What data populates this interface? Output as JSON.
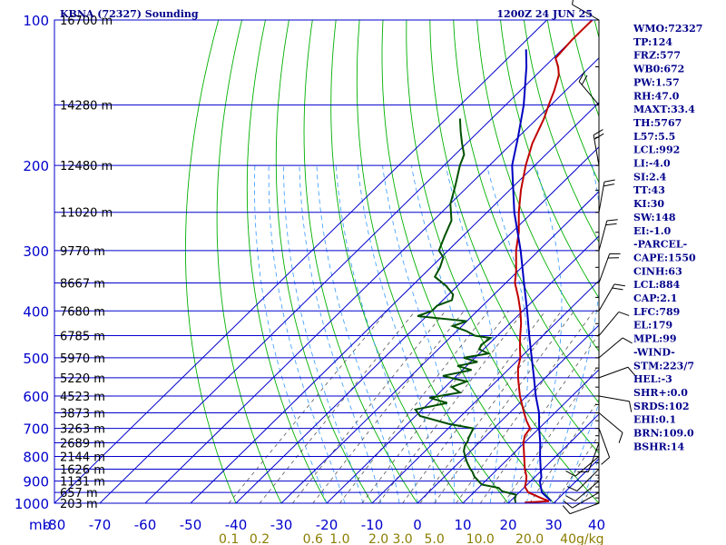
{
  "header": {
    "station": "KBNA (72327) Sounding",
    "time": "1200Z 24 JUN 25"
  },
  "colors": {
    "isobar": "#0000cd",
    "isotherm": "#0000cd",
    "dry_adiabat": "#00b000",
    "moist_adiabat": "#3399ff",
    "mixing_ratio": "#555555",
    "temperature": "#c00000",
    "dewpoint": "#005000",
    "parcel": "#0000c0"
  },
  "chart_data": {
    "type": "line",
    "title": "KBNA (72327) Sounding",
    "subtitle": "1200Z 24 JUN 25",
    "x_unit": "°C",
    "y_unit": "mb",
    "y_scale": "log",
    "pressure_range": [
      1000,
      100
    ],
    "temperature_range": [
      -80,
      40
    ],
    "pressure_levels": [
      {
        "p": 100,
        "label": "100"
      },
      {
        "p": 150,
        "label": ""
      },
      {
        "p": 200,
        "label": "200"
      },
      {
        "p": 250,
        "label": ""
      },
      {
        "p": 300,
        "label": "300"
      },
      {
        "p": 350,
        "label": ""
      },
      {
        "p": 400,
        "label": "400"
      },
      {
        "p": 450,
        "label": ""
      },
      {
        "p": 500,
        "label": "500"
      },
      {
        "p": 550,
        "label": ""
      },
      {
        "p": 600,
        "label": "600"
      },
      {
        "p": 650,
        "label": ""
      },
      {
        "p": 700,
        "label": "700"
      },
      {
        "p": 750,
        "label": ""
      },
      {
        "p": 800,
        "label": "800"
      },
      {
        "p": 850,
        "label": ""
      },
      {
        "p": 900,
        "label": "900"
      },
      {
        "p": 950,
        "label": ""
      },
      {
        "p": 1000,
        "label": "1000"
      }
    ],
    "y_axis_unit_label": "mb",
    "temperature_ticks": [
      {
        "t": -80,
        "label": "-80"
      },
      {
        "t": -70,
        "label": "-70"
      },
      {
        "t": -60,
        "label": "-60"
      },
      {
        "t": -50,
        "label": "-50"
      },
      {
        "t": -40,
        "label": "-40"
      },
      {
        "t": -30,
        "label": "-30"
      },
      {
        "t": -20,
        "label": "-20"
      },
      {
        "t": -10,
        "label": "-10"
      },
      {
        "t": 0,
        "label": "0"
      },
      {
        "t": 10,
        "label": "10"
      },
      {
        "t": 20,
        "label": "20"
      },
      {
        "t": 30,
        "label": "30"
      },
      {
        "t": 40,
        "label": "40"
      }
    ],
    "isotherms_extra": [
      50,
      60,
      70,
      80,
      90,
      100,
      110,
      120
    ],
    "heights": [
      {
        "p": 100,
        "label": "16700 m"
      },
      {
        "p": 150,
        "label": "14280 m"
      },
      {
        "p": 200,
        "label": "12480 m"
      },
      {
        "p": 250,
        "label": "11020 m"
      },
      {
        "p": 300,
        "label": "9770 m"
      },
      {
        "p": 350,
        "label": "8667 m"
      },
      {
        "p": 400,
        "label": "7680 m"
      },
      {
        "p": 450,
        "label": "6785 m"
      },
      {
        "p": 500,
        "label": "5970 m"
      },
      {
        "p": 550,
        "label": "5220 m"
      },
      {
        "p": 600,
        "label": "4523 m"
      },
      {
        "p": 650,
        "label": "3873 m"
      },
      {
        "p": 700,
        "label": "3263 m"
      },
      {
        "p": 750,
        "label": "2689 m"
      },
      {
        "p": 800,
        "label": "2144 m"
      },
      {
        "p": 850,
        "label": "1626 m"
      },
      {
        "p": 900,
        "label": "1131 m"
      },
      {
        "p": 950,
        "label": "657 m"
      },
      {
        "p": 1000,
        "label": "203 m"
      }
    ],
    "mixing_ratio_labels": [
      {
        "w": 0.1,
        "label": "0.1"
      },
      {
        "w": 0.2,
        "label": "0.2"
      },
      {
        "w": 0.6,
        "label": "0.6"
      },
      {
        "w": 1.0,
        "label": "1.0"
      },
      {
        "w": 2.0,
        "label": "2.0"
      },
      {
        "w": 3.0,
        "label": "3.0"
      },
      {
        "w": 5.0,
        "label": "5.0"
      },
      {
        "w": 10.0,
        "label": "10.0"
      },
      {
        "w": 20.0,
        "label": "20.0"
      },
      {
        "w": 40.0,
        "label": "40g/kg"
      }
    ],
    "mixing_ratio_lines": [
      0.1,
      0.2,
      0.4,
      0.6,
      1.0,
      1.5,
      2.0,
      3.0,
      4.0,
      5.0,
      7.0,
      10.0,
      14.0,
      20.0,
      28.0,
      40.0
    ],
    "series": [
      {
        "name": "temperature",
        "values": [
          [
            997,
            23.5
          ],
          [
            990,
            28.5
          ],
          [
            975,
            26.0
          ],
          [
            950,
            22.0
          ],
          [
            925,
            20.0
          ],
          [
            900,
            19.0
          ],
          [
            880,
            18.0
          ],
          [
            850,
            16.0
          ],
          [
            800,
            13.0
          ],
          [
            750,
            9.8
          ],
          [
            725,
            8.5
          ],
          [
            700,
            8.0
          ],
          [
            675,
            5.5
          ],
          [
            650,
            3.2
          ],
          [
            600,
            -1.5
          ],
          [
            550,
            -6.0
          ],
          [
            525,
            -8.2
          ],
          [
            500,
            -10.0
          ],
          [
            475,
            -12.5
          ],
          [
            450,
            -15.0
          ],
          [
            425,
            -17.5
          ],
          [
            400,
            -20.5
          ],
          [
            375,
            -24.0
          ],
          [
            350,
            -28.0
          ],
          [
            330,
            -30.5
          ],
          [
            300,
            -35.0
          ],
          [
            275,
            -38.5
          ],
          [
            250,
            -43.0
          ],
          [
            225,
            -47.5
          ],
          [
            200,
            -52.0
          ],
          [
            180,
            -55.5
          ],
          [
            160,
            -58.5
          ],
          [
            150,
            -60.5
          ],
          [
            140,
            -62.5
          ],
          [
            130,
            -65.0
          ],
          [
            125,
            -67.0
          ],
          [
            120,
            -69.5
          ],
          [
            110,
            -70.0
          ],
          [
            100,
            -70.0
          ]
        ]
      },
      {
        "name": "dewpoint",
        "values": [
          [
            997,
            21.5
          ],
          [
            980,
            20.5
          ],
          [
            960,
            19.8
          ],
          [
            945,
            16.0
          ],
          [
            930,
            14.5
          ],
          [
            915,
            10.0
          ],
          [
            900,
            8.5
          ],
          [
            880,
            6.5
          ],
          [
            860,
            5.0
          ],
          [
            850,
            4.0
          ],
          [
            820,
            1.5
          ],
          [
            800,
            0.0
          ],
          [
            780,
            -1.5
          ],
          [
            760,
            -2.5
          ],
          [
            745,
            -2.8
          ],
          [
            730,
            -3.5
          ],
          [
            700,
            -4.5
          ],
          [
            685,
            -11.0
          ],
          [
            660,
            -19.0
          ],
          [
            640,
            -21.5
          ],
          [
            620,
            -16.0
          ],
          [
            605,
            -21.0
          ],
          [
            590,
            -15.5
          ],
          [
            575,
            -18.5
          ],
          [
            560,
            -16.5
          ],
          [
            545,
            -23.0
          ],
          [
            530,
            -18.0
          ],
          [
            520,
            -22.0
          ],
          [
            510,
            -18.5
          ],
          [
            500,
            -22.5
          ],
          [
            490,
            -18.0
          ],
          [
            480,
            -21.0
          ],
          [
            470,
            -21.5
          ],
          [
            455,
            -21.0
          ],
          [
            450,
            -25.0
          ],
          [
            440,
            -28.0
          ],
          [
            430,
            -32.0
          ],
          [
            420,
            -30.0
          ],
          [
            410,
            -42.0
          ],
          [
            400,
            -40.0
          ],
          [
            390,
            -40.0
          ],
          [
            380,
            -38.0
          ],
          [
            370,
            -39.0
          ],
          [
            355,
            -42.5
          ],
          [
            340,
            -47.0
          ],
          [
            325,
            -48.0
          ],
          [
            310,
            -49.5
          ],
          [
            300,
            -52.0
          ],
          [
            280,
            -54.0
          ],
          [
            260,
            -56.0
          ],
          [
            240,
            -60.0
          ],
          [
            220,
            -63.0
          ],
          [
            200,
            -66.5
          ],
          [
            190,
            -68.0
          ],
          [
            180,
            -71.0
          ],
          [
            170,
            -74.0
          ],
          [
            160,
            -77.0
          ]
        ]
      },
      {
        "name": "parcel",
        "values": [
          [
            990,
            29.0
          ],
          [
            950,
            25.0
          ],
          [
            900,
            22.0
          ],
          [
            884,
            21.5
          ],
          [
            850,
            19.5
          ],
          [
            800,
            16.5
          ],
          [
            750,
            13.5
          ],
          [
            700,
            10.0
          ],
          [
            650,
            6.5
          ],
          [
            600,
            2.0
          ],
          [
            550,
            -2.5
          ],
          [
            500,
            -7.5
          ],
          [
            450,
            -13.0
          ],
          [
            400,
            -19.0
          ],
          [
            350,
            -26.0
          ],
          [
            300,
            -34.0
          ],
          [
            250,
            -44.0
          ],
          [
            200,
            -55.0
          ],
          [
            175,
            -60.0
          ],
          [
            150,
            -66.0
          ],
          [
            125,
            -74.0
          ],
          [
            115,
            -78.0
          ]
        ]
      }
    ],
    "wind_barbs": [
      {
        "p": 1000,
        "dir": 250,
        "spd": 5
      },
      {
        "p": 950,
        "dir": 240,
        "spd": 5
      },
      {
        "p": 900,
        "dir": 230,
        "spd": 10
      },
      {
        "p": 850,
        "dir": 225,
        "spd": 10
      },
      {
        "p": 800,
        "dir": 230,
        "spd": 10
      },
      {
        "p": 750,
        "dir": 200,
        "spd": 5
      },
      {
        "p": 700,
        "dir": 160,
        "spd": 5
      },
      {
        "p": 650,
        "dir": 130,
        "spd": 5
      },
      {
        "p": 600,
        "dir": 100,
        "spd": 5
      },
      {
        "p": 550,
        "dir": 70,
        "spd": 5
      },
      {
        "p": 500,
        "dir": 50,
        "spd": 10
      },
      {
        "p": 450,
        "dir": 40,
        "spd": 10
      },
      {
        "p": 400,
        "dir": 30,
        "spd": 15
      },
      {
        "p": 350,
        "dir": 20,
        "spd": 15
      },
      {
        "p": 300,
        "dir": 15,
        "spd": 20
      },
      {
        "p": 250,
        "dir": 10,
        "spd": 20
      },
      {
        "p": 200,
        "dir": 350,
        "spd": 20
      },
      {
        "p": 150,
        "dir": 320,
        "spd": 15
      },
      {
        "p": 100,
        "dir": 300,
        "spd": 10
      }
    ]
  },
  "indices": [
    "WMO:72327",
    "TP:124",
    "FRZ:577",
    "WB0:672",
    "PW:1.57",
    "RH:47.0",
    "MAXT:33.4",
    "TH:5767",
    "L57:5.5",
    "LCL:992",
    "LI:-4.0",
    "SI:2.4",
    "TT:43",
    "KI:30",
    "SW:148",
    "EI:-1.0",
    "-PARCEL-",
    "CAPE:1550",
    "CINH:63",
    "LCL:884",
    "CAP:2.1",
    "LFC:789",
    "EL:179",
    "MPL:99",
    "-WIND-",
    "STM:223/7",
    "HEL:-3",
    "SHR+:0.0",
    "SRDS:102",
    "EHI:0.1",
    "BRN:109.0",
    "BSHR:14"
  ]
}
